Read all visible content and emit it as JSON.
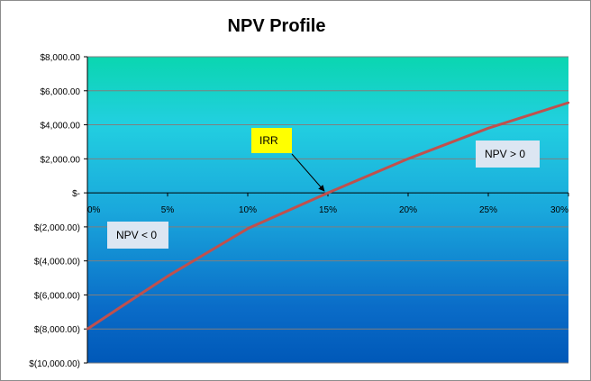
{
  "chart_data": {
    "type": "line",
    "title": "NPV Profile",
    "xlabel": "",
    "ylabel": "",
    "x": [
      0,
      0.05,
      0.1,
      0.15,
      0.2,
      0.25,
      0.3
    ],
    "x_tick_labels": [
      "0%",
      "5%",
      "10%",
      "15%",
      "20%",
      "25%",
      "30%"
    ],
    "xlim": [
      0,
      0.3
    ],
    "y_ticks": [
      8000,
      6000,
      4000,
      2000,
      0,
      -2000,
      -4000,
      -6000,
      -8000,
      -10000
    ],
    "y_tick_labels": [
      "$8,000.00",
      "$6,000.00",
      "$4,000.00",
      "$2,000.00",
      "$-",
      "$(2,000.00)",
      "$(4,000.00)",
      "$(6,000.00)",
      "$(8,000.00)",
      "$(10,000.00)"
    ],
    "ylim": [
      -10000,
      8000
    ],
    "grid": true,
    "series": [
      {
        "values": [
          -8000,
          -4900,
          -2100,
          0,
          2000,
          3800,
          5300
        ],
        "color": "#c0504d"
      }
    ],
    "annotations": [
      {
        "id": "irr",
        "text": "IRR",
        "fill": "#ffff00",
        "points_to": [
          0.15,
          0
        ]
      },
      {
        "id": "npv-pos",
        "text": "NPV > 0",
        "fill": "#dce6f2"
      },
      {
        "id": "npv-neg",
        "text": "NPV < 0",
        "fill": "#dce6f2"
      }
    ],
    "plot_gradient": [
      "#0ad6b0",
      "#22cfe0",
      "#1aa8dc",
      "#0a6cc8",
      "#0058b8"
    ]
  }
}
